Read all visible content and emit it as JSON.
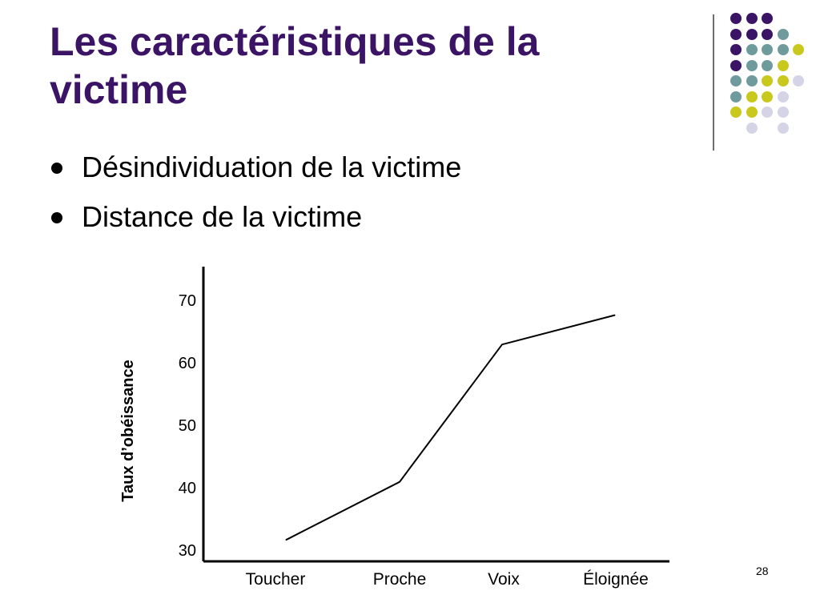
{
  "slide": {
    "title_lines": [
      "Les caractéristiques de la",
      "victime"
    ],
    "bullets": [
      "Désindividuation de la victime",
      "Distance de la victime"
    ],
    "page_number": "28",
    "colors": {
      "title": "#3b1466",
      "purple": "#3b1466",
      "teal": "#6f9b9c",
      "yellow": "#c9c81c",
      "lavender": "#d4d4e6"
    }
  },
  "decoration": {
    "dot_grid": [
      [
        "purple",
        "purple",
        "purple",
        "",
        ""
      ],
      [
        "purple",
        "purple",
        "purple",
        "teal",
        ""
      ],
      [
        "purple",
        "teal",
        "teal",
        "teal",
        "yellow"
      ],
      [
        "purple",
        "teal",
        "teal",
        "yellow",
        ""
      ],
      [
        "teal",
        "teal",
        "yellow",
        "yellow",
        "lavender"
      ],
      [
        "teal",
        "yellow",
        "yellow",
        "lavender",
        ""
      ],
      [
        "yellow",
        "yellow",
        "lavender",
        "lavender",
        ""
      ],
      [
        "",
        "lavender",
        "",
        "lavender",
        ""
      ]
    ]
  },
  "chart_data": {
    "type": "line",
    "categories": [
      "Toucher",
      "Proche",
      "Voix",
      "Éloignée"
    ],
    "series": [
      {
        "values": [
          31.5,
          40.8,
          62.8,
          67.5
        ]
      }
    ],
    "ylabel": "Taux d’obéissance",
    "xlabel": "",
    "ylim": [
      30,
      70
    ],
    "yticks": [
      30,
      40,
      50,
      60,
      70
    ],
    "grid": false
  }
}
